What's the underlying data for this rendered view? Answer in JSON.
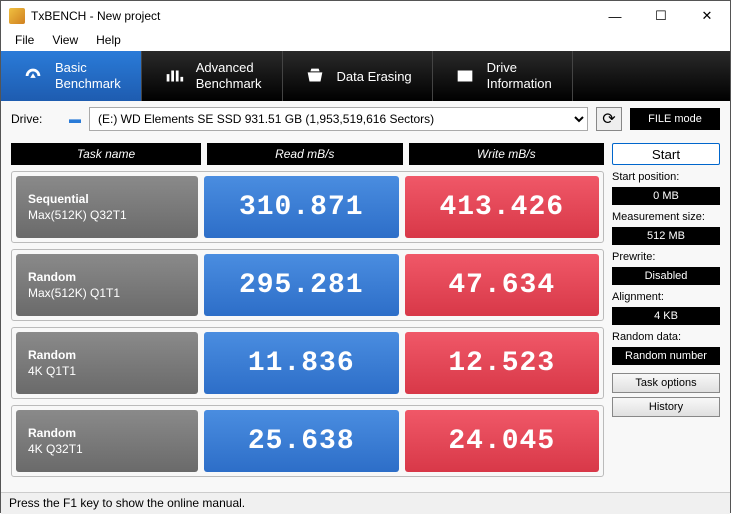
{
  "window": {
    "title": "TxBENCH - New project"
  },
  "menu": {
    "file": "File",
    "view": "View",
    "help": "Help"
  },
  "tabs": {
    "basic": "Basic\nBenchmark",
    "advanced": "Advanced\nBenchmark",
    "erase": "Data Erasing",
    "drive": "Drive\nInformation"
  },
  "drive": {
    "label": "Drive:",
    "selected": "(E:) WD Elements SE SSD  931.51 GB (1,953,519,616 Sectors)",
    "mode": "FILE mode"
  },
  "headers": {
    "task": "Task name",
    "read": "Read mB/s",
    "write": "Write mB/s"
  },
  "rows": [
    {
      "name1": "Sequential",
      "name2": "Max(512K) Q32T1",
      "read": "310.871",
      "write": "413.426"
    },
    {
      "name1": "Random",
      "name2": "Max(512K) Q1T1",
      "read": "295.281",
      "write": "47.634"
    },
    {
      "name1": "Random",
      "name2": "4K Q1T1",
      "read": "11.836",
      "write": "12.523"
    },
    {
      "name1": "Random",
      "name2": "4K Q32T1",
      "read": "25.638",
      "write": "24.045"
    }
  ],
  "side": {
    "start": "Start",
    "startpos_l": "Start position:",
    "startpos_v": "0 MB",
    "meas_l": "Measurement size:",
    "meas_v": "512 MB",
    "prew_l": "Prewrite:",
    "prew_v": "Disabled",
    "align_l": "Alignment:",
    "align_v": "4 KB",
    "data_l": "Random data:",
    "data_v": "Random number",
    "task_btn": "Task options",
    "hist_btn": "History"
  },
  "status": "Press the F1 key to show the online manual."
}
